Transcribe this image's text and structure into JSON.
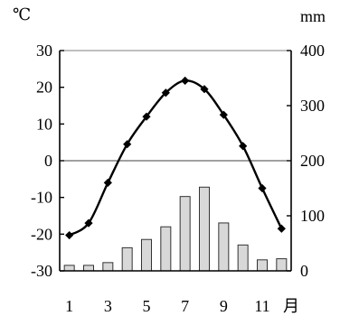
{
  "chart_data": {
    "type": "bar+line",
    "categories": [
      "1",
      "2",
      "3",
      "4",
      "5",
      "6",
      "7",
      "8",
      "9",
      "10",
      "11",
      "12"
    ],
    "x_tick_labels": [
      "1",
      "3",
      "5",
      "7",
      "9",
      "11"
    ],
    "x_unit": "月",
    "series": [
      {
        "type": "line",
        "axis": "left",
        "values": [
          -20.3,
          -17,
          -6,
          4.5,
          12,
          18.5,
          21.8,
          19.5,
          12.5,
          4,
          -7.5,
          -18.5
        ]
      },
      {
        "type": "bar",
        "axis": "right",
        "values": [
          10,
          10,
          15,
          42,
          57,
          80,
          135,
          152,
          87,
          47,
          20,
          22
        ]
      }
    ],
    "left_axis": {
      "unit": "℃",
      "ylim": [
        -30,
        30
      ],
      "ticks": [
        "30",
        "20",
        "10",
        "0",
        "-10",
        "-20",
        "-30"
      ]
    },
    "right_axis": {
      "unit": "mm",
      "ylim": [
        0,
        400
      ],
      "ticks": [
        "400",
        "300",
        "200",
        "100",
        "0"
      ]
    },
    "reference_line": {
      "axis": "left",
      "value": 0
    },
    "colors": {
      "line": "#000000",
      "bar_fill": "#d8d8d8",
      "bar_stroke": "#333333"
    }
  }
}
